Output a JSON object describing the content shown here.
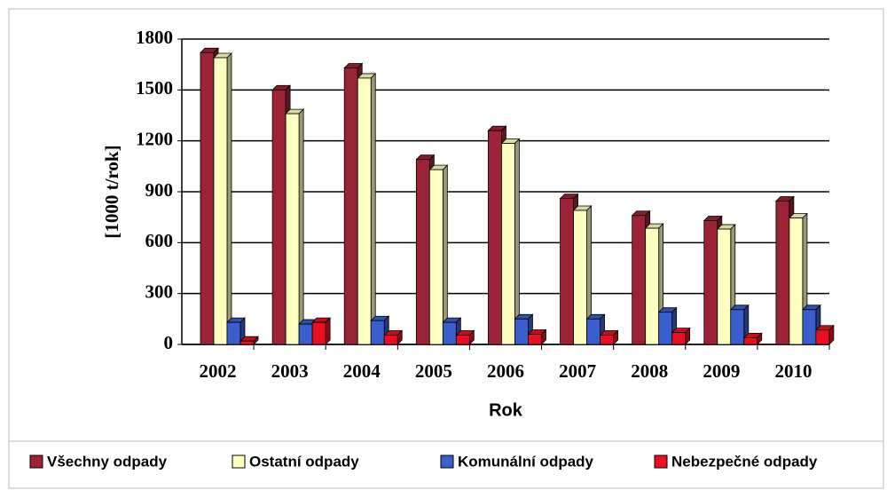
{
  "chart_data": {
    "type": "bar",
    "categories": [
      "2002",
      "2003",
      "2004",
      "2005",
      "2006",
      "2007",
      "2008",
      "2009",
      "2010"
    ],
    "series": [
      {
        "name": "Všechny odpady",
        "color": "#9b2335",
        "values": [
          1720,
          1500,
          1630,
          1090,
          1260,
          860,
          760,
          730,
          845
        ]
      },
      {
        "name": "Ostatní odpady",
        "color": "#ffffc0",
        "values": [
          1690,
          1360,
          1570,
          1030,
          1185,
          790,
          685,
          680,
          745
        ]
      },
      {
        "name": "Komunální odpady",
        "color": "#3a5fcd",
        "values": [
          130,
          120,
          140,
          130,
          150,
          150,
          190,
          205,
          205
        ]
      },
      {
        "name": "Nebezpečné odpady",
        "color": "#e81020",
        "values": [
          20,
          130,
          55,
          55,
          60,
          55,
          70,
          40,
          85
        ]
      }
    ],
    "xlabel": "Rok",
    "ylabel": "[1000 t/rok]",
    "ylim": [
      0,
      1800
    ],
    "yticks": [
      0,
      300,
      600,
      900,
      1200,
      1500,
      1800
    ],
    "grid": true,
    "legend": "bottom"
  }
}
